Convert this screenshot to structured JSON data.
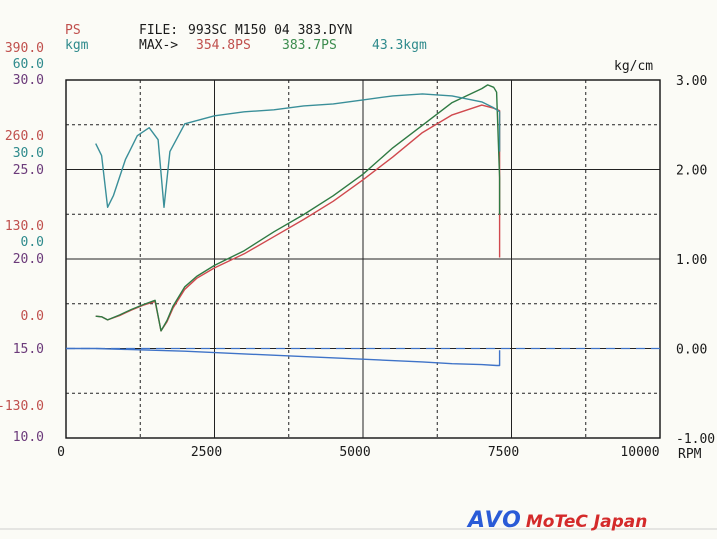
{
  "header": {
    "ps_label": "PS",
    "kgm_label": "kgm",
    "file_label": "FILE:",
    "file_name": "993SC M150 04 383.DYN",
    "max_label": "MAX->",
    "max_ps": "354.8PS",
    "max_ps2": "383.7PS",
    "max_kgm": "43.3kgm"
  },
  "logo": {
    "brand": "AVO",
    "sub": "MoTeC Japan"
  },
  "chart_data": {
    "type": "line",
    "x_range": [
      0,
      10000
    ],
    "x_ticks": [
      "0",
      "2500",
      "5000",
      "7500",
      "10000"
    ],
    "xlabel": "RPM",
    "left_axis_labels": [
      {
        "text": "390.0",
        "color": "#c0504d"
      },
      {
        "text": "60.0",
        "color": "#2e8a8c"
      },
      {
        "text": "30.0",
        "color": "#6b3a7a"
      },
      {
        "text": "260.0",
        "color": "#c0504d"
      },
      {
        "text": "30.0",
        "color": "#2e8a8c"
      },
      {
        "text": "25.0",
        "color": "#6b3a7a"
      },
      {
        "text": "130.0",
        "color": "#c0504d"
      },
      {
        "text": "0.0",
        "color": "#2e8a8c"
      },
      {
        "text": "20.0",
        "color": "#6b3a7a"
      },
      {
        "text": "0.0",
        "color": "#c0504d"
      },
      {
        "text": "15.0",
        "color": "#6b3a7a"
      },
      {
        "text": "-130.0",
        "color": "#c0504d"
      },
      {
        "text": "10.0",
        "color": "#6b3a7a"
      }
    ],
    "right_axis": {
      "label": "kg/cm",
      "range": [
        -1.0,
        3.0
      ],
      "ticks": [
        "3.00",
        "2.00",
        "1.00",
        "0.00",
        "-1.00"
      ]
    },
    "power_scale": [
      -195,
      390
    ],
    "torque_scale": [
      -30,
      60
    ],
    "grid": true,
    "series": [
      {
        "color": "#d0494e",
        "scale": "power",
        "points": [
          [
            500,
            4
          ],
          [
            600,
            3
          ],
          [
            700,
            -2
          ],
          [
            900,
            5
          ],
          [
            1100,
            14
          ],
          [
            1300,
            22
          ],
          [
            1500,
            28
          ],
          [
            1600,
            -20
          ],
          [
            1700,
            -5
          ],
          [
            1800,
            17
          ],
          [
            2000,
            48
          ],
          [
            2200,
            66
          ],
          [
            2500,
            83
          ],
          [
            3000,
            106
          ],
          [
            3500,
            134
          ],
          [
            4000,
            162
          ],
          [
            4500,
            192
          ],
          [
            5000,
            227
          ],
          [
            5500,
            264
          ],
          [
            6000,
            304
          ],
          [
            6500,
            333
          ],
          [
            7000,
            349
          ],
          [
            7200,
            344
          ],
          [
            7300,
            340
          ],
          [
            7300,
            170
          ],
          [
            7300,
            100
          ]
        ]
      },
      {
        "color": "#2f7a43",
        "scale": "power",
        "points": [
          [
            500,
            4
          ],
          [
            600,
            3
          ],
          [
            700,
            -2
          ],
          [
            900,
            6
          ],
          [
            1100,
            15
          ],
          [
            1300,
            23
          ],
          [
            1500,
            30
          ],
          [
            1600,
            -20
          ],
          [
            1700,
            -3
          ],
          [
            1800,
            20
          ],
          [
            2000,
            52
          ],
          [
            2200,
            69
          ],
          [
            2500,
            87
          ],
          [
            3000,
            111
          ],
          [
            3500,
            142
          ],
          [
            4000,
            170
          ],
          [
            4500,
            201
          ],
          [
            5000,
            236
          ],
          [
            5500,
            279
          ],
          [
            6000,
            316
          ],
          [
            6500,
            353
          ],
          [
            7000,
            376
          ],
          [
            7100,
            382
          ],
          [
            7200,
            378
          ],
          [
            7250,
            370
          ],
          [
            7300,
            230
          ],
          [
            7300,
            170
          ]
        ]
      },
      {
        "color": "#3a8f99",
        "scale": "torque",
        "points": [
          [
            500,
            44
          ],
          [
            600,
            41
          ],
          [
            700,
            28
          ],
          [
            800,
            31
          ],
          [
            1000,
            40
          ],
          [
            1200,
            46
          ],
          [
            1400,
            48
          ],
          [
            1550,
            45
          ],
          [
            1650,
            28
          ],
          [
            1750,
            42
          ],
          [
            2000,
            49
          ],
          [
            2500,
            51
          ],
          [
            3000,
            52
          ],
          [
            3500,
            52.5
          ],
          [
            4000,
            53.5
          ],
          [
            4500,
            54
          ],
          [
            5000,
            55
          ],
          [
            5500,
            56
          ],
          [
            6000,
            56.5
          ],
          [
            6500,
            56
          ],
          [
            7000,
            54.5
          ],
          [
            7200,
            53
          ],
          [
            7300,
            52
          ],
          [
            7300,
            42
          ]
        ]
      },
      {
        "color": "#3f73c8",
        "scale": "boost",
        "points": [
          [
            0,
            0.0
          ],
          [
            500,
            0.0
          ],
          [
            1000,
            -0.01
          ],
          [
            2000,
            -0.03
          ],
          [
            3000,
            -0.06
          ],
          [
            4000,
            -0.09
          ],
          [
            5000,
            -0.12
          ],
          [
            6000,
            -0.15
          ],
          [
            6500,
            -0.17
          ],
          [
            7000,
            -0.18
          ],
          [
            7250,
            -0.19
          ],
          [
            7300,
            -0.19
          ],
          [
            7300,
            -0.02
          ]
        ]
      }
    ]
  }
}
